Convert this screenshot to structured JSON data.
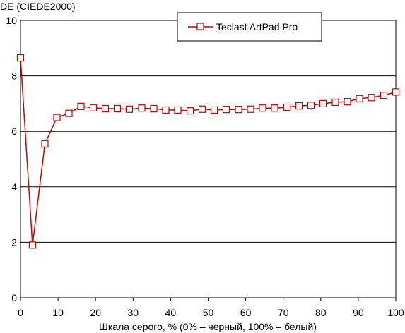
{
  "chart_data": {
    "type": "line",
    "ylabel": "DE (CIEDE2000)",
    "xlabel": "Шкала серого, % (0% – черный, 100% – белый)",
    "xlim": [
      0,
      100
    ],
    "ylim": [
      0,
      10
    ],
    "xticks": [
      0,
      10,
      20,
      30,
      40,
      50,
      60,
      70,
      80,
      90,
      100
    ],
    "yticks": [
      0,
      2,
      4,
      6,
      8,
      10
    ],
    "grid": "horizontal",
    "legend_position": "top-right",
    "series": [
      {
        "name": "Teclast ArtPad Pro",
        "color": "#cc0000",
        "marker": "square",
        "x": [
          0,
          3.2,
          6.5,
          9.7,
          12.9,
          16.1,
          19.4,
          22.6,
          25.8,
          29.0,
          32.3,
          35.5,
          38.7,
          41.9,
          45.2,
          48.4,
          51.6,
          54.8,
          58.1,
          61.3,
          64.5,
          67.7,
          71.0,
          74.2,
          77.4,
          80.6,
          83.9,
          87.1,
          90.3,
          93.5,
          96.8,
          100
        ],
        "y": [
          8.65,
          1.9,
          5.55,
          6.5,
          6.65,
          6.9,
          6.85,
          6.82,
          6.82,
          6.8,
          6.84,
          6.82,
          6.77,
          6.77,
          6.74,
          6.8,
          6.77,
          6.79,
          6.79,
          6.8,
          6.84,
          6.84,
          6.87,
          6.92,
          6.94,
          7.0,
          7.05,
          7.07,
          7.18,
          7.22,
          7.3,
          7.42
        ]
      }
    ]
  }
}
